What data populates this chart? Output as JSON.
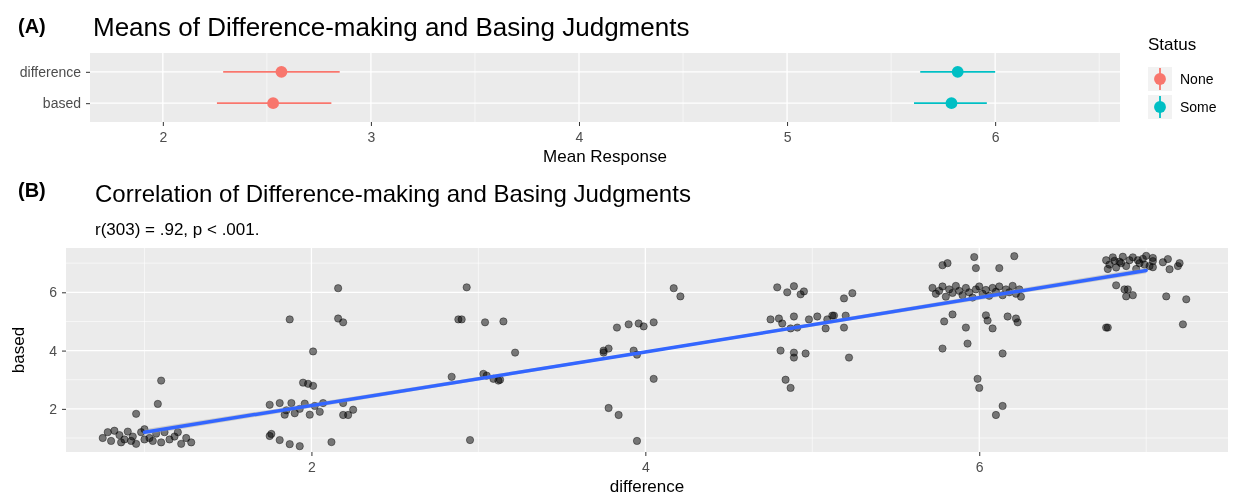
{
  "chart_data": [
    {
      "type": "scatter",
      "orientation": "horizontal",
      "title": "Means of Difference-making and Basing Judgments",
      "xlabel": "Mean Response",
      "legend_title": "Status",
      "legend": "right",
      "grid": true,
      "marker": "circle",
      "annotations": [
        "(A)"
      ],
      "categories": [
        "difference",
        "based"
      ],
      "xlim": [
        1.65,
        6.6
      ],
      "xticks": [
        2,
        3,
        4,
        5,
        6
      ],
      "series": [
        {
          "name": "None",
          "color": "#f8766d",
          "values": [
            2.57,
            2.53
          ],
          "errors": [
            [
              2.29,
              2.85
            ],
            [
              2.26,
              2.81
            ]
          ]
        },
        {
          "name": "Some",
          "color": "#00bfc4",
          "values": [
            5.82,
            5.79
          ],
          "errors": [
            [
              5.64,
              6.0
            ],
            [
              5.61,
              5.96
            ]
          ]
        }
      ]
    },
    {
      "type": "scatter",
      "title": "Correlation of Difference-making and Basing Judgments",
      "subtitle": "r(303) = .92, p < .001.",
      "xlabel": "difference",
      "ylabel": "based",
      "grid": true,
      "annotations": [
        "(B)"
      ],
      "xlim": [
        0.53,
        7.49
      ],
      "xticks": [
        2,
        4,
        6
      ],
      "ylim": [
        0.52,
        7.52
      ],
      "yticks": [
        2,
        4,
        6
      ],
      "series": [
        {
          "marker": "circle",
          "color": "#000000",
          "x": [
            0.78,
            0.82,
            0.85,
            0.88,
            0.9,
            0.93,
            0.8,
            0.86,
            0.95,
            0.98,
            1.0,
            1.03,
            1.05,
            1.07,
            1.1,
            1.12,
            1.15,
            1.18,
            1.2,
            1.22,
            1.25,
            0.75,
            0.92,
            1.0,
            1.28,
            1.1,
            1.08,
            0.95,
            1.75,
            1.81,
            1.85,
            1.88,
            1.9,
            1.93,
            1.96,
            1.99,
            2.02,
            2.05,
            2.07,
            1.84,
            1.75,
            1.76,
            1.81,
            1.87,
            1.93,
            2.12,
            1.87,
            2.16,
            2.16,
            2.19,
            2.01,
            1.95,
            1.98,
            2.01,
            2.19,
            2.19,
            2.22,
            2.25,
            2.93,
            2.88,
            2.9,
            3.04,
            3.15,
            3.22,
            2.84,
            3.03,
            3.05,
            3.09,
            3.12,
            3.13,
            2.95,
            3.75,
            3.75,
            3.78,
            3.83,
            3.9,
            3.96,
            3.99,
            4.05,
            3.93,
            3.95,
            4.05,
            3.78,
            3.84,
            3.95,
            4.17,
            4.21,
            4.79,
            4.89,
            4.85,
            4.93,
            4.95,
            4.75,
            4.8,
            4.89,
            4.98,
            5.03,
            5.09,
            5.13,
            4.82,
            4.87,
            4.91,
            5.08,
            4.81,
            4.89,
            4.89,
            4.96,
            4.84,
            4.87,
            5.19,
            5.24,
            5.12,
            5.2,
            5.19,
            5.22,
            5.78,
            5.81,
            5.97,
            5.98,
            6.12,
            6.21,
            5.72,
            5.74,
            5.76,
            5.78,
            5.8,
            5.82,
            5.84,
            5.86,
            5.88,
            5.9,
            5.92,
            5.94,
            5.96,
            5.98,
            6.0,
            6.02,
            6.04,
            6.06,
            6.08,
            6.1,
            6.12,
            6.14,
            6.16,
            6.18,
            6.2,
            6.22,
            6.24,
            6.25,
            5.84,
            5.79,
            5.92,
            5.93,
            5.78,
            6.04,
            6.05,
            6.08,
            6.17,
            6.22,
            6.23,
            6.14,
            5.99,
            6.0,
            6.14,
            6.1,
            6.76,
            6.78,
            6.8,
            6.82,
            6.84,
            6.86,
            6.88,
            6.9,
            6.92,
            6.94,
            6.96,
            6.98,
            7.0,
            7.02,
            7.04,
            6.77,
            6.85,
            6.95,
            6.99,
            6.81,
            7.04,
            7.1,
            7.13,
            7.14,
            7.19,
            7.2,
            7.04,
            6.82,
            6.87,
            6.89,
            6.88,
            6.92,
            7.12,
            7.24,
            7.22,
            6.76,
            6.77
          ],
          "values": [
            1.2,
            1.25,
            1.1,
            0.95,
            1.22,
            1.05,
            0.9,
            0.85,
            0.8,
            1.2,
            0.95,
            1.0,
            0.9,
            1.15,
            0.85,
            1.2,
            0.95,
            1.05,
            1.2,
            0.8,
            1.0,
            1.0,
            0.9,
            1.3,
            0.85,
            2.97,
            2.17,
            1.83,
            2.14,
            2.2,
            1.95,
            2.2,
            1.85,
            2.0,
            2.18,
            1.8,
            2.1,
            1.9,
            2.2,
            1.8,
            1.07,
            1.14,
            0.93,
            0.79,
            0.72,
            0.86,
            5.07,
            6.14,
            5.1,
            4.97,
            3.97,
            2.9,
            2.86,
            2.79,
            2.2,
            1.79,
            1.79,
            1.97,
            6.17,
            5.07,
            5.07,
            4.97,
            5.0,
            3.93,
            3.1,
            3.2,
            3.14,
            3.03,
            2.97,
            3.0,
            0.93,
            4.0,
            3.93,
            4.07,
            4.79,
            4.9,
            4.93,
            4.83,
            4.97,
            4.0,
            3.86,
            3.03,
            2.03,
            1.79,
            0.9,
            6.14,
            5.86,
            6.17,
            6.21,
            6.0,
            5.93,
            6.03,
            5.07,
            5.1,
            5.17,
            5.07,
            5.17,
            5.07,
            5.2,
            4.93,
            4.76,
            4.79,
            4.76,
            4.0,
            3.93,
            3.76,
            3.9,
            3.0,
            2.72,
            5.79,
            5.97,
            5.2,
            5.2,
            4.79,
            3.76,
            6.93,
            7.0,
            7.21,
            6.83,
            6.83,
            7.24,
            6.15,
            5.95,
            6.05,
            6.2,
            5.85,
            6.1,
            5.98,
            6.22,
            6.05,
            5.9,
            6.15,
            6.0,
            5.82,
            6.1,
            6.2,
            5.95,
            6.08,
            5.88,
            6.15,
            6.02,
            6.2,
            5.9,
            6.1,
            6.0,
            6.22,
            5.95,
            6.1,
            5.85,
            5.24,
            5.0,
            4.79,
            4.24,
            4.07,
            5.21,
            5.03,
            4.76,
            5.17,
            5.1,
            4.97,
            3.9,
            3.03,
            2.72,
            2.1,
            1.79,
            7.1,
            6.95,
            7.2,
            6.85,
            7.05,
            7.22,
            6.9,
            7.1,
            7.2,
            6.8,
            7.0,
            7.15,
            7.25,
            6.9,
            7.18,
            6.8,
            7.0,
            7.1,
            6.95,
            7.08,
            7.07,
            7.03,
            7.14,
            6.79,
            6.9,
            7.0,
            6.86,
            6.24,
            6.1,
            6.1,
            5.86,
            5.9,
            5.86,
            5.76,
            4.9,
            4.79,
            4.79
          ]
        },
        {
          "type": "line",
          "color": "#3366ff",
          "x": [
            1,
            4,
            7
          ],
          "values": [
            1.2,
            3.95,
            6.75
          ],
          "lower": [
            1.1,
            3.91,
            6.65
          ],
          "upper": [
            1.3,
            3.99,
            6.85
          ]
        }
      ]
    }
  ]
}
